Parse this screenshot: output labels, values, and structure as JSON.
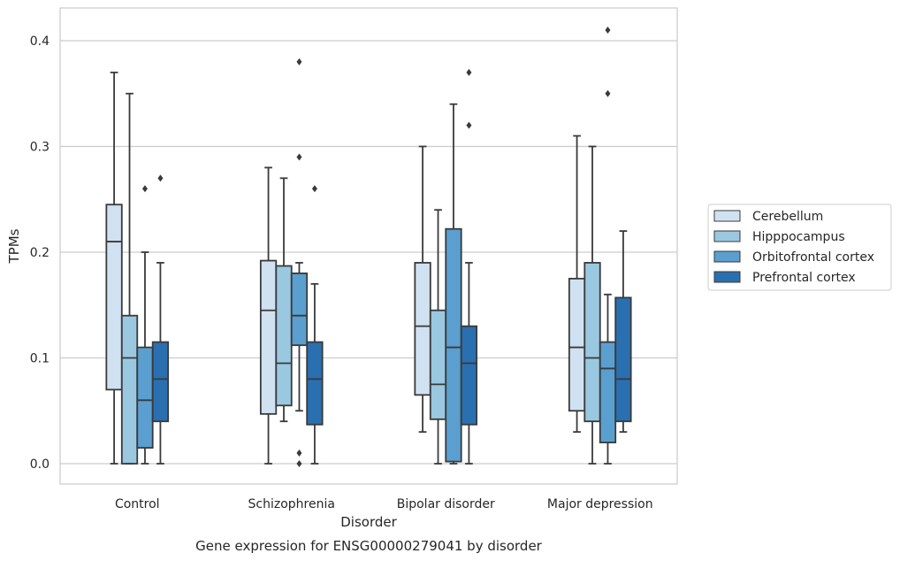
{
  "chart_data": {
    "type": "boxplot",
    "title": "",
    "caption": "Gene expression for ENSG00000279041 by disorder",
    "xlabel": "Disorder",
    "ylabel": "TPMs",
    "ylim": [
      -0.02,
      0.43
    ],
    "yticks": [
      0.0,
      0.1,
      0.2,
      0.3,
      0.4
    ],
    "ytick_labels": [
      "0.0",
      "0.1",
      "0.2",
      "0.3",
      "0.4"
    ],
    "grid": "horizontal",
    "legend_position": "right",
    "categories": [
      "Control",
      "Schizophrenia",
      "Bipolar disorder",
      "Major depression"
    ],
    "series": [
      {
        "name": "Cerebellum",
        "color": "#d0e2f2",
        "boxes": [
          {
            "whislo": 0.0,
            "q1": 0.07,
            "med": 0.21,
            "q3": 0.245,
            "whishi": 0.37,
            "fliers": []
          },
          {
            "whislo": 0.0,
            "q1": 0.047,
            "med": 0.145,
            "q3": 0.192,
            "whishi": 0.28,
            "fliers": []
          },
          {
            "whislo": 0.03,
            "q1": 0.065,
            "med": 0.13,
            "q3": 0.19,
            "whishi": 0.3,
            "fliers": []
          },
          {
            "whislo": 0.03,
            "q1": 0.05,
            "med": 0.11,
            "q3": 0.175,
            "whishi": 0.31,
            "fliers": []
          }
        ]
      },
      {
        "name": "Hipppocampus",
        "color": "#9ac8e0",
        "boxes": [
          {
            "whislo": 0.0,
            "q1": 0.0,
            "med": 0.1,
            "q3": 0.14,
            "whishi": 0.35,
            "fliers": []
          },
          {
            "whislo": 0.04,
            "q1": 0.055,
            "med": 0.095,
            "q3": 0.187,
            "whishi": 0.27,
            "fliers": []
          },
          {
            "whislo": 0.0,
            "q1": 0.042,
            "med": 0.075,
            "q3": 0.145,
            "whishi": 0.24,
            "fliers": []
          },
          {
            "whislo": 0.0,
            "q1": 0.04,
            "med": 0.1,
            "q3": 0.19,
            "whishi": 0.3,
            "fliers": []
          }
        ]
      },
      {
        "name": "Orbitofrontal cortex",
        "color": "#5a9fcf",
        "boxes": [
          {
            "whislo": 0.0,
            "q1": 0.015,
            "med": 0.06,
            "q3": 0.11,
            "whishi": 0.2,
            "fliers": [
              0.26
            ]
          },
          {
            "whislo": 0.05,
            "q1": 0.112,
            "med": 0.14,
            "q3": 0.18,
            "whishi": 0.19,
            "fliers": [
              0.38,
              0.29,
              0.01,
              0.0
            ]
          },
          {
            "whislo": 0.0,
            "q1": 0.002,
            "med": 0.11,
            "q3": 0.222,
            "whishi": 0.34,
            "fliers": []
          },
          {
            "whislo": 0.0,
            "q1": 0.02,
            "med": 0.09,
            "q3": 0.115,
            "whishi": 0.16,
            "fliers": [
              0.41,
              0.35
            ]
          }
        ]
      },
      {
        "name": "Prefrontal cortex",
        "color": "#2a6fb0",
        "boxes": [
          {
            "whislo": 0.0,
            "q1": 0.04,
            "med": 0.08,
            "q3": 0.115,
            "whishi": 0.19,
            "fliers": [
              0.27
            ]
          },
          {
            "whislo": 0.0,
            "q1": 0.037,
            "med": 0.08,
            "q3": 0.115,
            "whishi": 0.17,
            "fliers": [
              0.26
            ]
          },
          {
            "whislo": 0.0,
            "q1": 0.037,
            "med": 0.095,
            "q3": 0.13,
            "whishi": 0.19,
            "fliers": [
              0.37,
              0.32
            ]
          },
          {
            "whislo": 0.03,
            "q1": 0.04,
            "med": 0.08,
            "q3": 0.157,
            "whishi": 0.22,
            "fliers": []
          }
        ]
      }
    ]
  }
}
